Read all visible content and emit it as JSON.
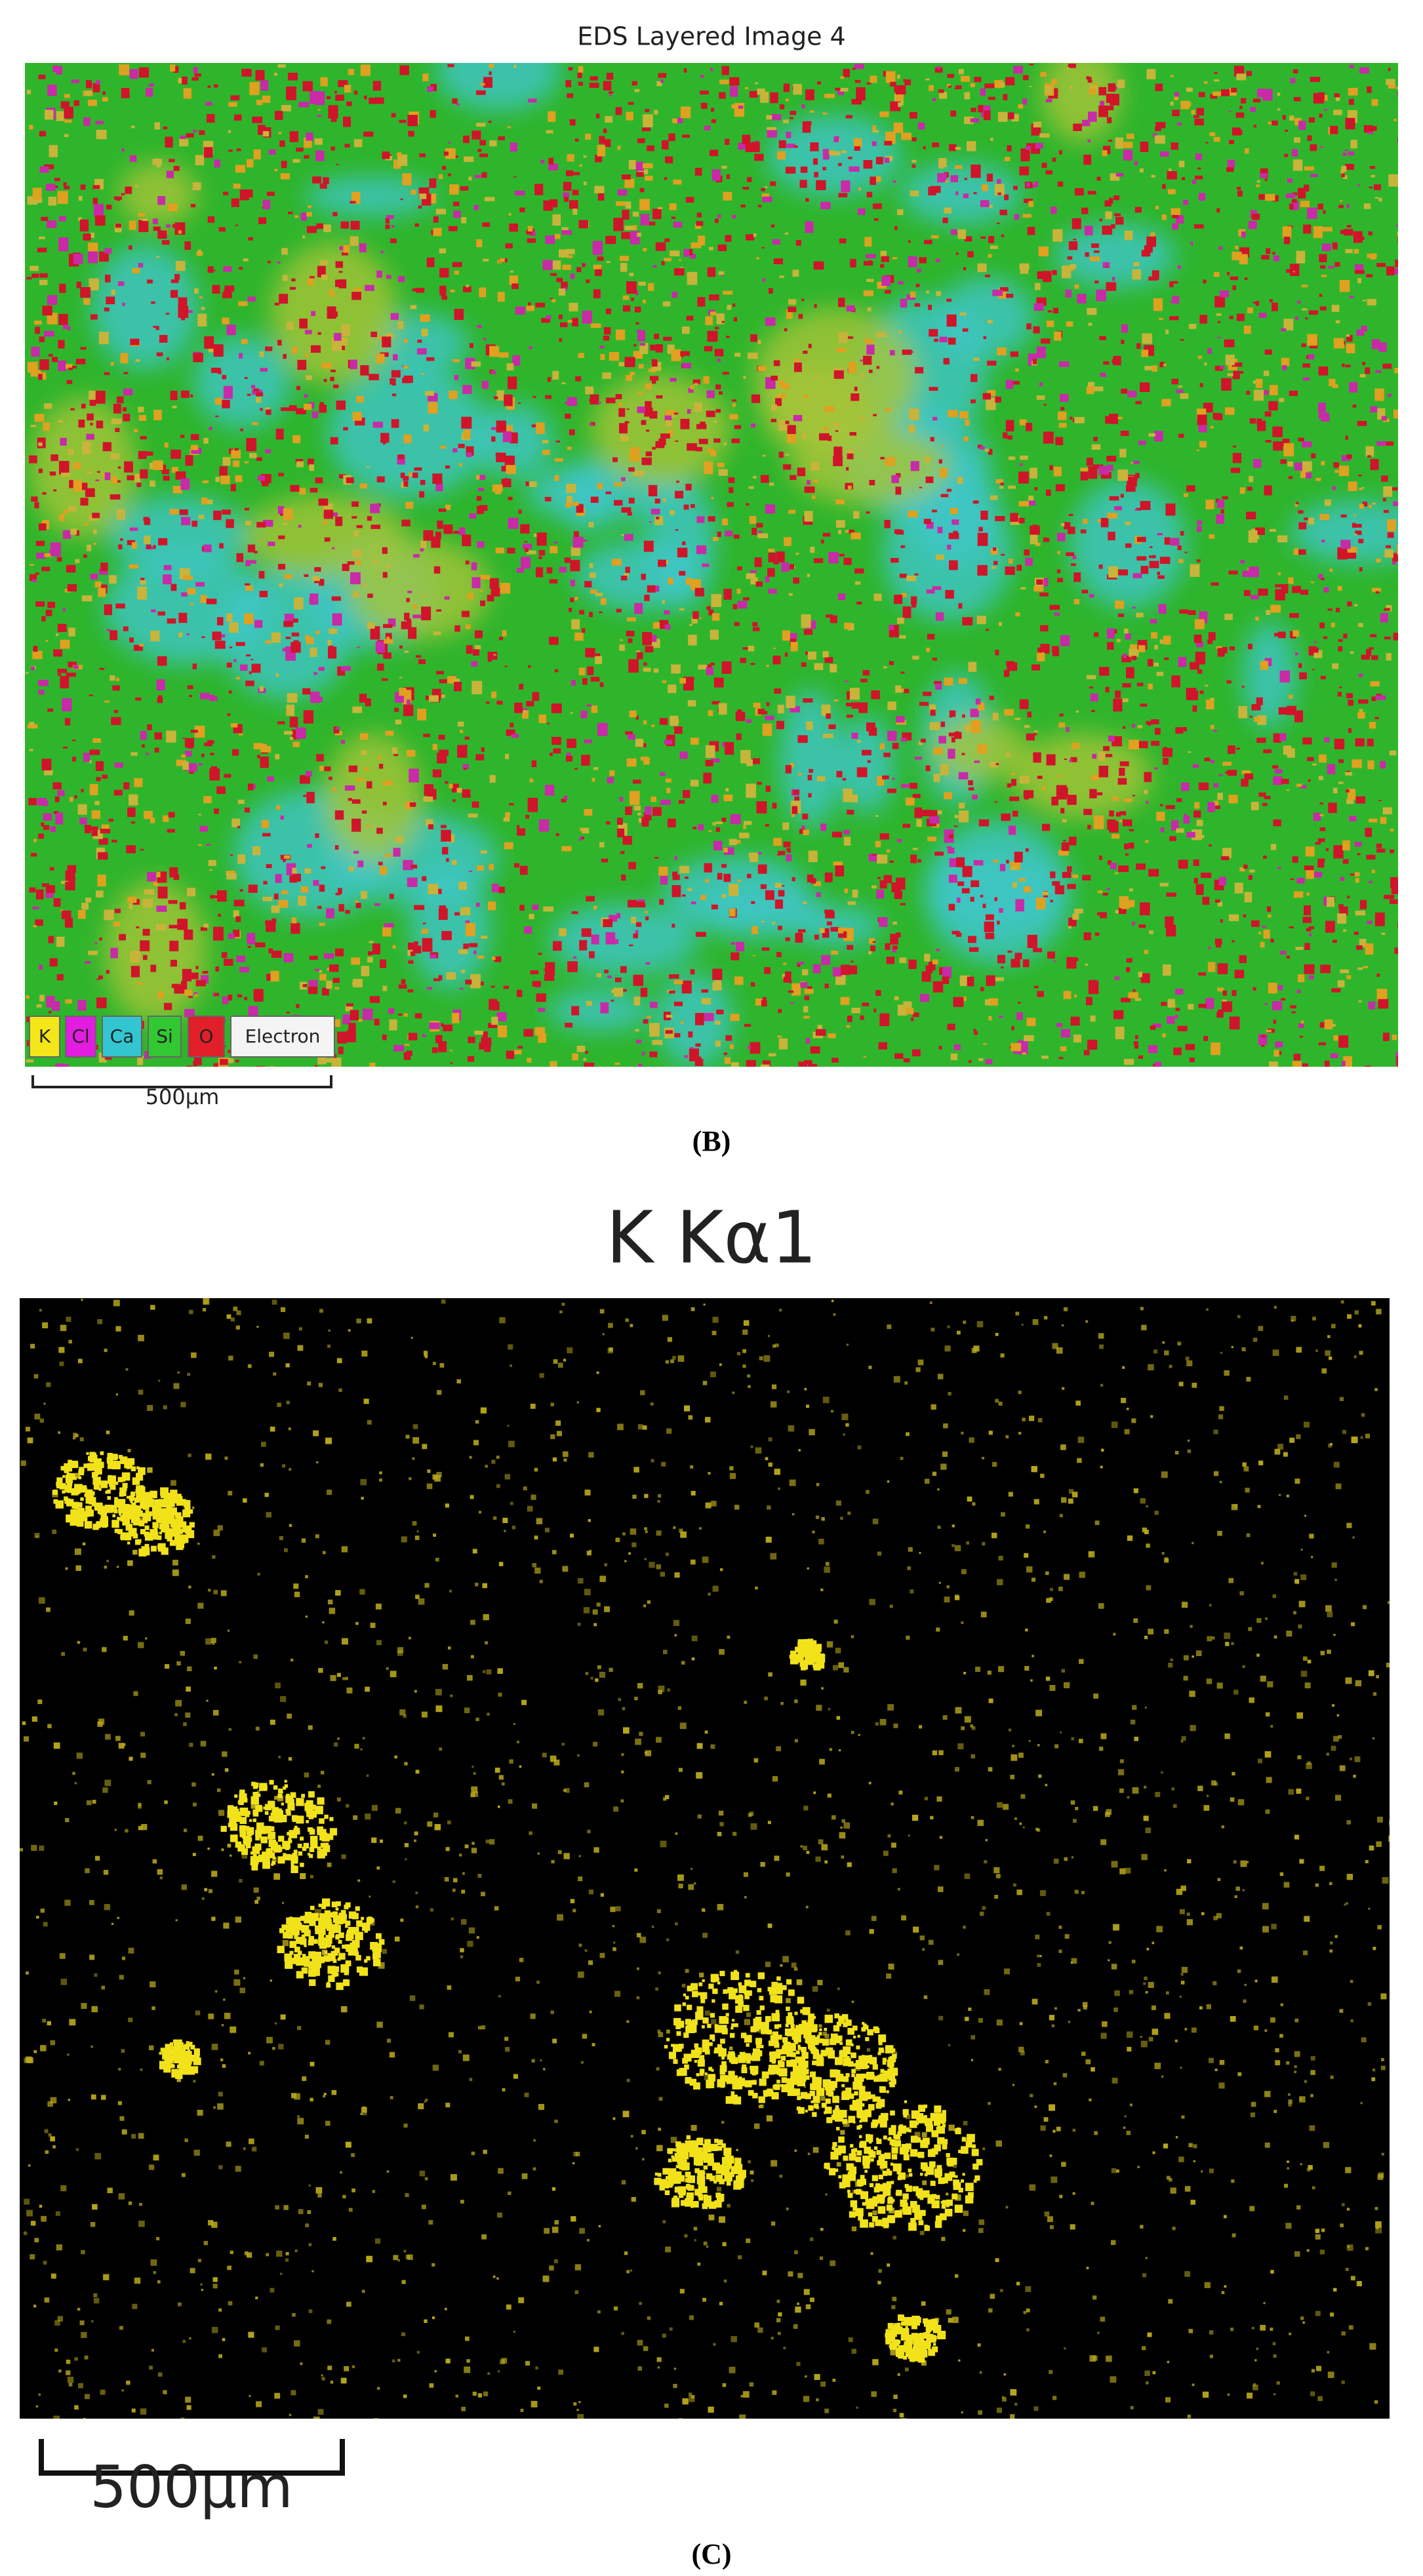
{
  "panel_b": {
    "title": "EDS Layered Image 4",
    "legend": [
      "K",
      "Cl",
      "Ca",
      "Si",
      "O",
      "Electron"
    ],
    "scale_bar": "500µm",
    "label": "(B)"
  },
  "panel_c": {
    "title": "K Kα1",
    "scale_bar": "500µm",
    "label": "(C)"
  }
}
